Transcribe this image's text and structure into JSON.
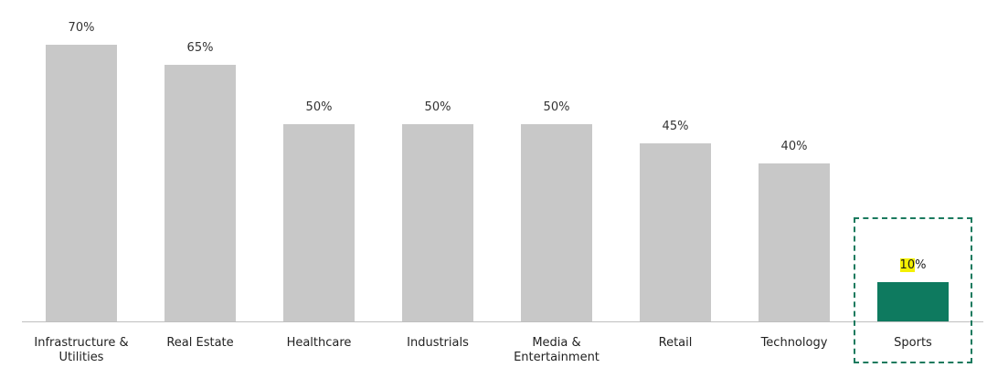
{
  "chart_data": {
    "type": "bar",
    "categories": [
      "Infrastructure & Utilities",
      "Real Estate",
      "Healthcare",
      "Industrials",
      "Media & Entertainment",
      "Retail",
      "Technology",
      "Sports"
    ],
    "values": [
      70,
      65,
      50,
      50,
      50,
      45,
      40,
      10
    ],
    "value_labels": [
      "70%",
      "65%",
      "50%",
      "50%",
      "50%",
      "45%",
      "40%",
      "10%"
    ],
    "colors": [
      "#c8c8c8",
      "#c8c8c8",
      "#c8c8c8",
      "#c8c8c8",
      "#c8c8c8",
      "#c8c8c8",
      "#c8c8c8",
      "#0e7a5f"
    ],
    "ylim": [
      0,
      70
    ]
  }
}
